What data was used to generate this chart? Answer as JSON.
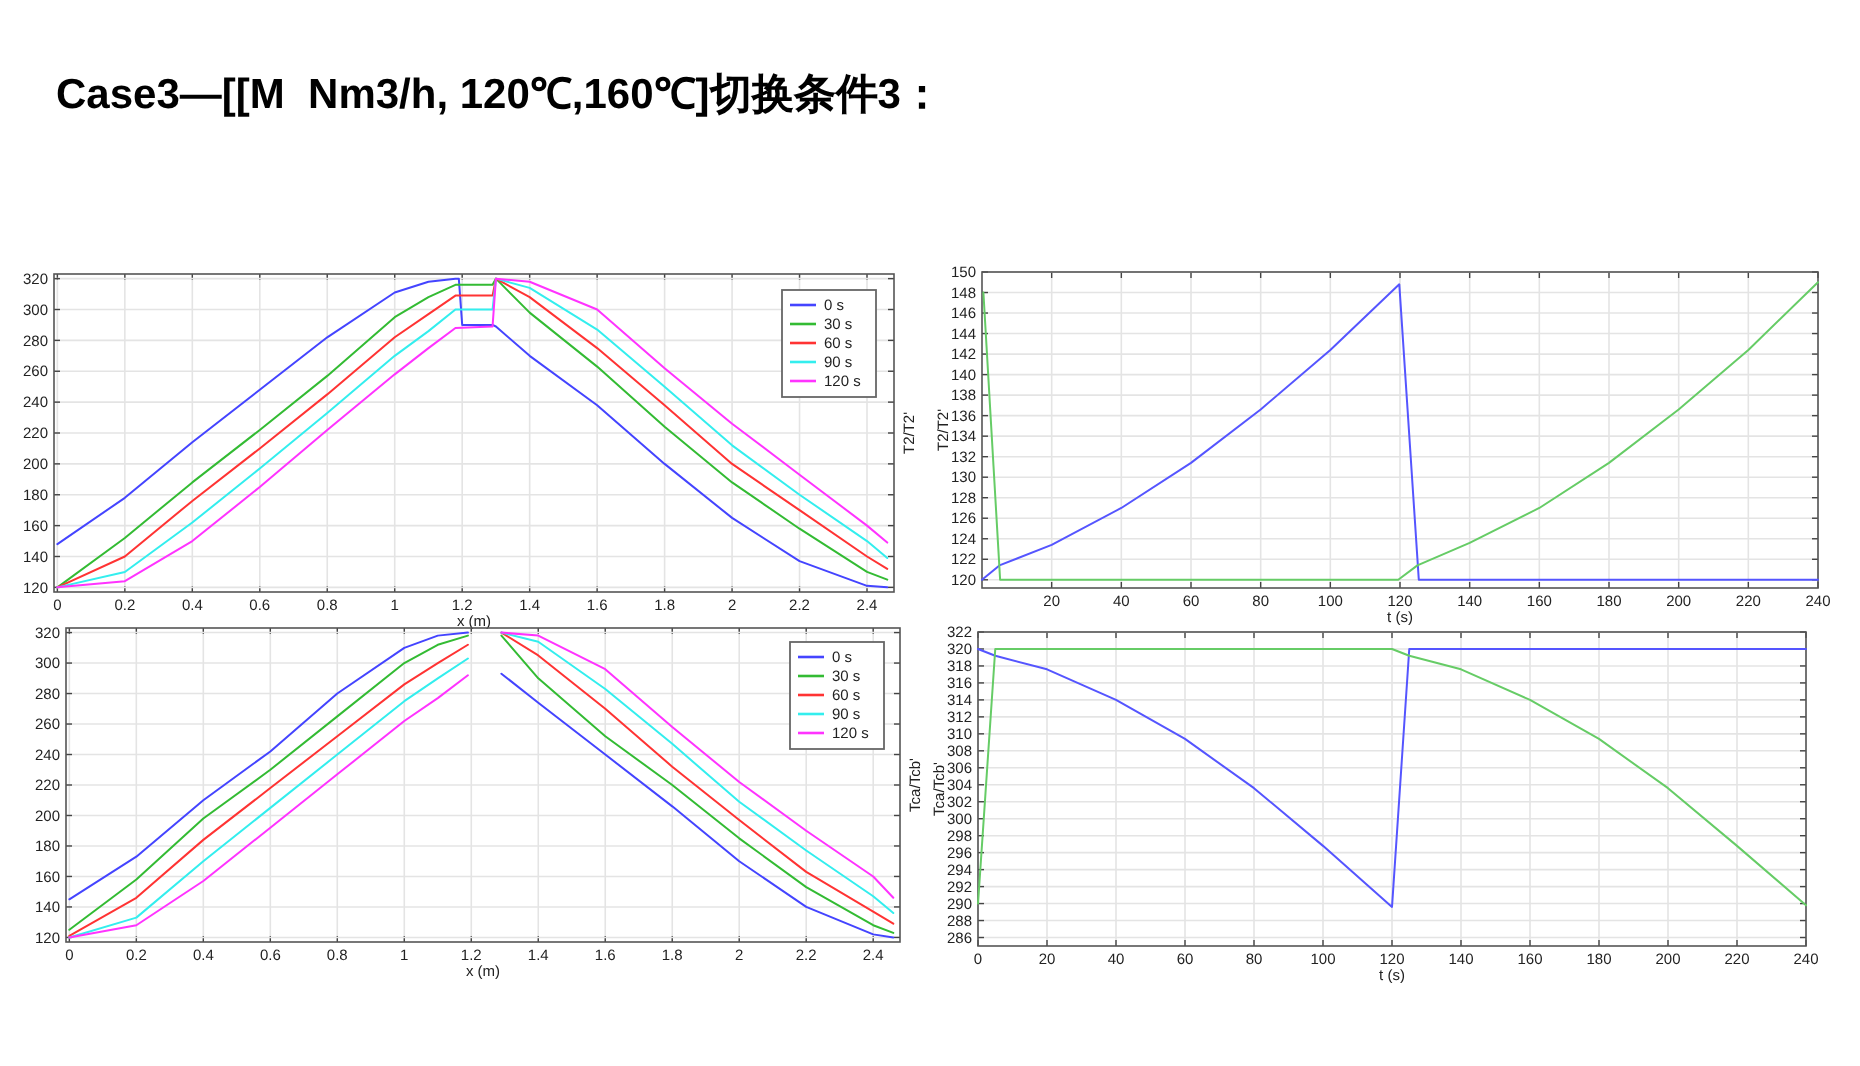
{
  "chart_data": [
    {
      "type": "line",
      "title": "Case3—[[M  Nm3/h, 120℃,160℃]切换条件3：",
      "xlabel": "x (m)",
      "ylabel": "T2/T2'",
      "xlim": [
        -0.01,
        2.48
      ],
      "xticks": [
        0,
        0.2,
        0.4,
        0.6,
        0.8,
        1,
        1.2,
        1.4,
        1.6,
        1.8,
        2,
        2.2,
        2.4
      ],
      "ylim": [
        117,
        323
      ],
      "yticks": [
        120,
        140,
        160,
        180,
        200,
        220,
        240,
        260,
        280,
        300,
        320
      ],
      "grid": true,
      "legend": "top right",
      "series": [
        {
          "name": "0 s",
          "color": "#4444ff",
          "x": [
            0,
            0.2,
            0.4,
            0.6,
            0.8,
            1.0,
            1.1,
            1.18,
            1.19,
            1.2,
            1.29,
            1.3,
            1.4,
            1.6,
            1.8,
            2.0,
            2.2,
            2.4,
            2.46
          ],
          "values": [
            148,
            178,
            214,
            248,
            282,
            311,
            318,
            320,
            320,
            290,
            290,
            289,
            270,
            238,
            200,
            165,
            137,
            121,
            120
          ]
        },
        {
          "name": "30 s",
          "color": "#33bb33",
          "x": [
            0,
            0.2,
            0.4,
            0.6,
            0.8,
            1.0,
            1.1,
            1.18,
            1.29,
            1.3,
            1.4,
            1.6,
            1.8,
            2.0,
            2.2,
            2.4,
            2.46
          ],
          "values": [
            120,
            152,
            188,
            222,
            257,
            295,
            308,
            316,
            316,
            320,
            298,
            263,
            224,
            188,
            158,
            130,
            125
          ]
        },
        {
          "name": "60 s",
          "color": "#ff3333",
          "x": [
            0,
            0.2,
            0.4,
            0.6,
            0.8,
            1.0,
            1.1,
            1.18,
            1.29,
            1.3,
            1.4,
            1.6,
            1.8,
            2.0,
            2.2,
            2.4,
            2.46
          ],
          "values": [
            120,
            140,
            176,
            210,
            245,
            282,
            297,
            309,
            309,
            320,
            308,
            275,
            238,
            200,
            170,
            140,
            132
          ]
        },
        {
          "name": "90 s",
          "color": "#33eeee",
          "x": [
            0,
            0.2,
            0.4,
            0.6,
            0.8,
            1.0,
            1.1,
            1.18,
            1.29,
            1.3,
            1.4,
            1.6,
            1.8,
            2.0,
            2.2,
            2.4,
            2.46
          ],
          "values": [
            120,
            130,
            162,
            197,
            233,
            270,
            286,
            300,
            300,
            320,
            314,
            287,
            250,
            212,
            180,
            150,
            139
          ]
        },
        {
          "name": "120 s",
          "color": "#ff33ff",
          "x": [
            0,
            0.2,
            0.4,
            0.6,
            0.8,
            1.0,
            1.1,
            1.18,
            1.29,
            1.3,
            1.4,
            1.6,
            1.8,
            2.0,
            2.2,
            2.4,
            2.46
          ],
          "values": [
            120,
            124,
            150,
            185,
            222,
            258,
            275,
            288,
            289,
            320,
            318,
            300,
            262,
            226,
            193,
            160,
            149
          ]
        }
      ]
    },
    {
      "type": "line",
      "xlabel": "t (s)",
      "ylabel": "T2/T2'",
      "xlim": [
        0,
        240
      ],
      "xticks": [
        20,
        40,
        60,
        80,
        100,
        120,
        140,
        160,
        180,
        200,
        220,
        240
      ],
      "ylim": [
        119.2,
        150
      ],
      "yticks": [
        120,
        122,
        124,
        126,
        128,
        130,
        132,
        134,
        136,
        138,
        140,
        142,
        144,
        146,
        148,
        150
      ],
      "grid": true,
      "series": [
        {
          "color": "#5555ff",
          "x": [
            0,
            5,
            20,
            40,
            60,
            80,
            100,
            119.8,
            125.4,
            240
          ],
          "values": [
            120,
            121.4,
            123.4,
            127,
            131.4,
            136.6,
            142.4,
            148.8,
            120,
            120
          ]
        },
        {
          "color": "#66cc66",
          "x": [
            0.4,
            5.2,
            119.5,
            125,
            140,
            160,
            180,
            200,
            220,
            240
          ],
          "values": [
            148,
            120,
            120,
            121.4,
            123.6,
            127,
            131.4,
            136.6,
            142.4,
            149
          ]
        }
      ]
    },
    {
      "type": "line",
      "xlabel": "x (m)",
      "ylabel": "Tca/Tcb'",
      "xlim": [
        -0.01,
        2.48
      ],
      "xticks": [
        0,
        0.2,
        0.4,
        0.6,
        0.8,
        1,
        1.2,
        1.4,
        1.6,
        1.8,
        2,
        2.2,
        2.4
      ],
      "ylim": [
        117,
        323
      ],
      "yticks": [
        120,
        140,
        160,
        180,
        200,
        220,
        240,
        260,
        280,
        300,
        320
      ],
      "grid": true,
      "legend": "top right",
      "series": [
        {
          "name": "0 s",
          "color": "#4444ff",
          "x": [
            0,
            0.2,
            0.4,
            0.6,
            0.8,
            1.0,
            1.1,
            1.19,
            1.24,
            1.29,
            1.4,
            1.6,
            1.8,
            2.0,
            2.2,
            2.4,
            2.46
          ],
          "values": [
            145,
            173,
            210,
            242,
            280,
            310,
            318,
            320,
            null,
            293,
            274,
            240,
            206,
            170,
            140,
            122,
            120
          ]
        },
        {
          "name": "30 s",
          "color": "#33bb33",
          "x": [
            0,
            0.2,
            0.4,
            0.6,
            0.8,
            1.0,
            1.1,
            1.19,
            1.24,
            1.29,
            1.4,
            1.6,
            1.8,
            2.0,
            2.2,
            2.4,
            2.46
          ],
          "values": [
            125,
            158,
            198,
            230,
            265,
            300,
            312,
            318,
            null,
            318,
            290,
            252,
            220,
            185,
            153,
            128,
            123
          ]
        },
        {
          "name": "60 s",
          "color": "#ff3333",
          "x": [
            0,
            0.2,
            0.4,
            0.6,
            0.8,
            1.0,
            1.1,
            1.19,
            1.24,
            1.29,
            1.4,
            1.6,
            1.8,
            2.0,
            2.2,
            2.4,
            2.46
          ],
          "values": [
            121,
            146,
            184,
            218,
            252,
            286,
            300,
            312,
            null,
            320,
            305,
            270,
            232,
            197,
            163,
            137,
            129
          ]
        },
        {
          "name": "90 s",
          "color": "#33eeee",
          "x": [
            0,
            0.2,
            0.4,
            0.6,
            0.8,
            1.0,
            1.1,
            1.19,
            1.24,
            1.29,
            1.4,
            1.6,
            1.8,
            2.0,
            2.2,
            2.4,
            2.46
          ],
          "values": [
            120,
            133,
            170,
            205,
            240,
            275,
            290,
            303,
            null,
            320,
            314,
            283,
            247,
            209,
            177,
            147,
            136
          ]
        },
        {
          "name": "120 s",
          "color": "#ff33ff",
          "x": [
            0,
            0.2,
            0.4,
            0.6,
            0.8,
            1.0,
            1.1,
            1.19,
            1.24,
            1.29,
            1.4,
            1.6,
            1.8,
            2.0,
            2.2,
            2.4,
            2.46
          ],
          "values": [
            120,
            128,
            157,
            192,
            227,
            262,
            277,
            292,
            null,
            320,
            318,
            296,
            258,
            222,
            190,
            160,
            146
          ]
        }
      ]
    },
    {
      "type": "line",
      "xlabel": "t (s)",
      "ylabel": "Tca/Tcb'",
      "xlim": [
        0,
        240
      ],
      "xticks": [
        0,
        20,
        40,
        60,
        80,
        100,
        120,
        140,
        160,
        180,
        200,
        220,
        240
      ],
      "ylim": [
        285,
        322
      ],
      "yticks": [
        286,
        288,
        290,
        292,
        294,
        296,
        298,
        300,
        302,
        304,
        306,
        308,
        310,
        312,
        314,
        316,
        318,
        320,
        322
      ],
      "grid": true,
      "series": [
        {
          "color": "#5555ff",
          "x": [
            0,
            5,
            20,
            40,
            60,
            80,
            100,
            120,
            125,
            240
          ],
          "values": [
            320,
            319.2,
            317.6,
            314,
            309.4,
            303.6,
            296.8,
            289.6,
            320,
            320
          ]
        },
        {
          "color": "#66cc66",
          "x": [
            0,
            5,
            120,
            125,
            140,
            160,
            180,
            200,
            220,
            240
          ],
          "values": [
            290,
            320,
            320,
            319.2,
            317.6,
            314,
            309.4,
            303.6,
            296.8,
            289.8
          ]
        }
      ]
    }
  ]
}
